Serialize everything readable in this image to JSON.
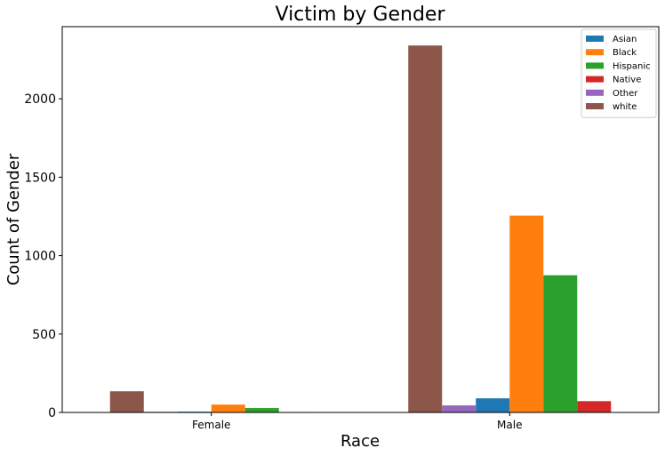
{
  "chart_data": {
    "type": "bar",
    "title": "Victim by Gender",
    "xlabel": "Race",
    "ylabel": "Count of Gender",
    "categories": [
      "Female",
      "Male"
    ],
    "bar_order": [
      "white",
      "Other",
      "Asian",
      "Black",
      "Hispanic",
      "Native"
    ],
    "series": [
      {
        "name": "Asian",
        "color": "#1f77b4",
        "values": [
          5,
          90
        ]
      },
      {
        "name": "Black",
        "color": "#ff7f0e",
        "values": [
          50,
          1255
        ]
      },
      {
        "name": "Hispanic",
        "color": "#2ca02c",
        "values": [
          28,
          875
        ]
      },
      {
        "name": "Native",
        "color": "#d62728",
        "values": [
          3,
          72
        ]
      },
      {
        "name": "Other",
        "color": "#9467bd",
        "values": [
          4,
          45
        ]
      },
      {
        "name": "white",
        "color": "#8c564b",
        "values": [
          135,
          2340
        ]
      }
    ],
    "ylim": [
      0,
      2460
    ],
    "yticks": [
      0,
      500,
      1000,
      1500,
      2000
    ],
    "grid": false,
    "legend_position": "top-right"
  }
}
